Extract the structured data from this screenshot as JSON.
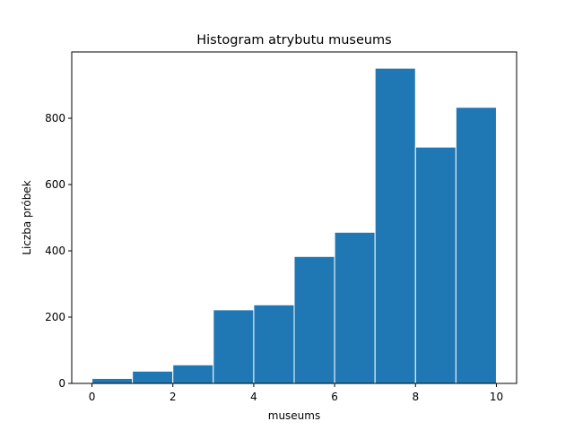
{
  "chart_data": {
    "type": "bar",
    "title": "Histogram atrybutu museums",
    "xlabel": "museums",
    "ylabel": "Liczba próbek",
    "bin_edges": [
      0,
      1,
      2,
      3,
      4,
      5,
      6,
      7,
      8,
      9,
      10
    ],
    "values": [
      15,
      37,
      56,
      222,
      237,
      383,
      456,
      951,
      713,
      833
    ],
    "xlim": [
      -0.5,
      10.5
    ],
    "ylim": [
      0,
      1000
    ],
    "xticks": [
      0,
      2,
      4,
      6,
      8,
      10
    ],
    "yticks": [
      0,
      200,
      400,
      600,
      800
    ],
    "bar_color": "#1f77b4",
    "edge_color": "#ffffff",
    "grid": false,
    "legend": "none"
  }
}
